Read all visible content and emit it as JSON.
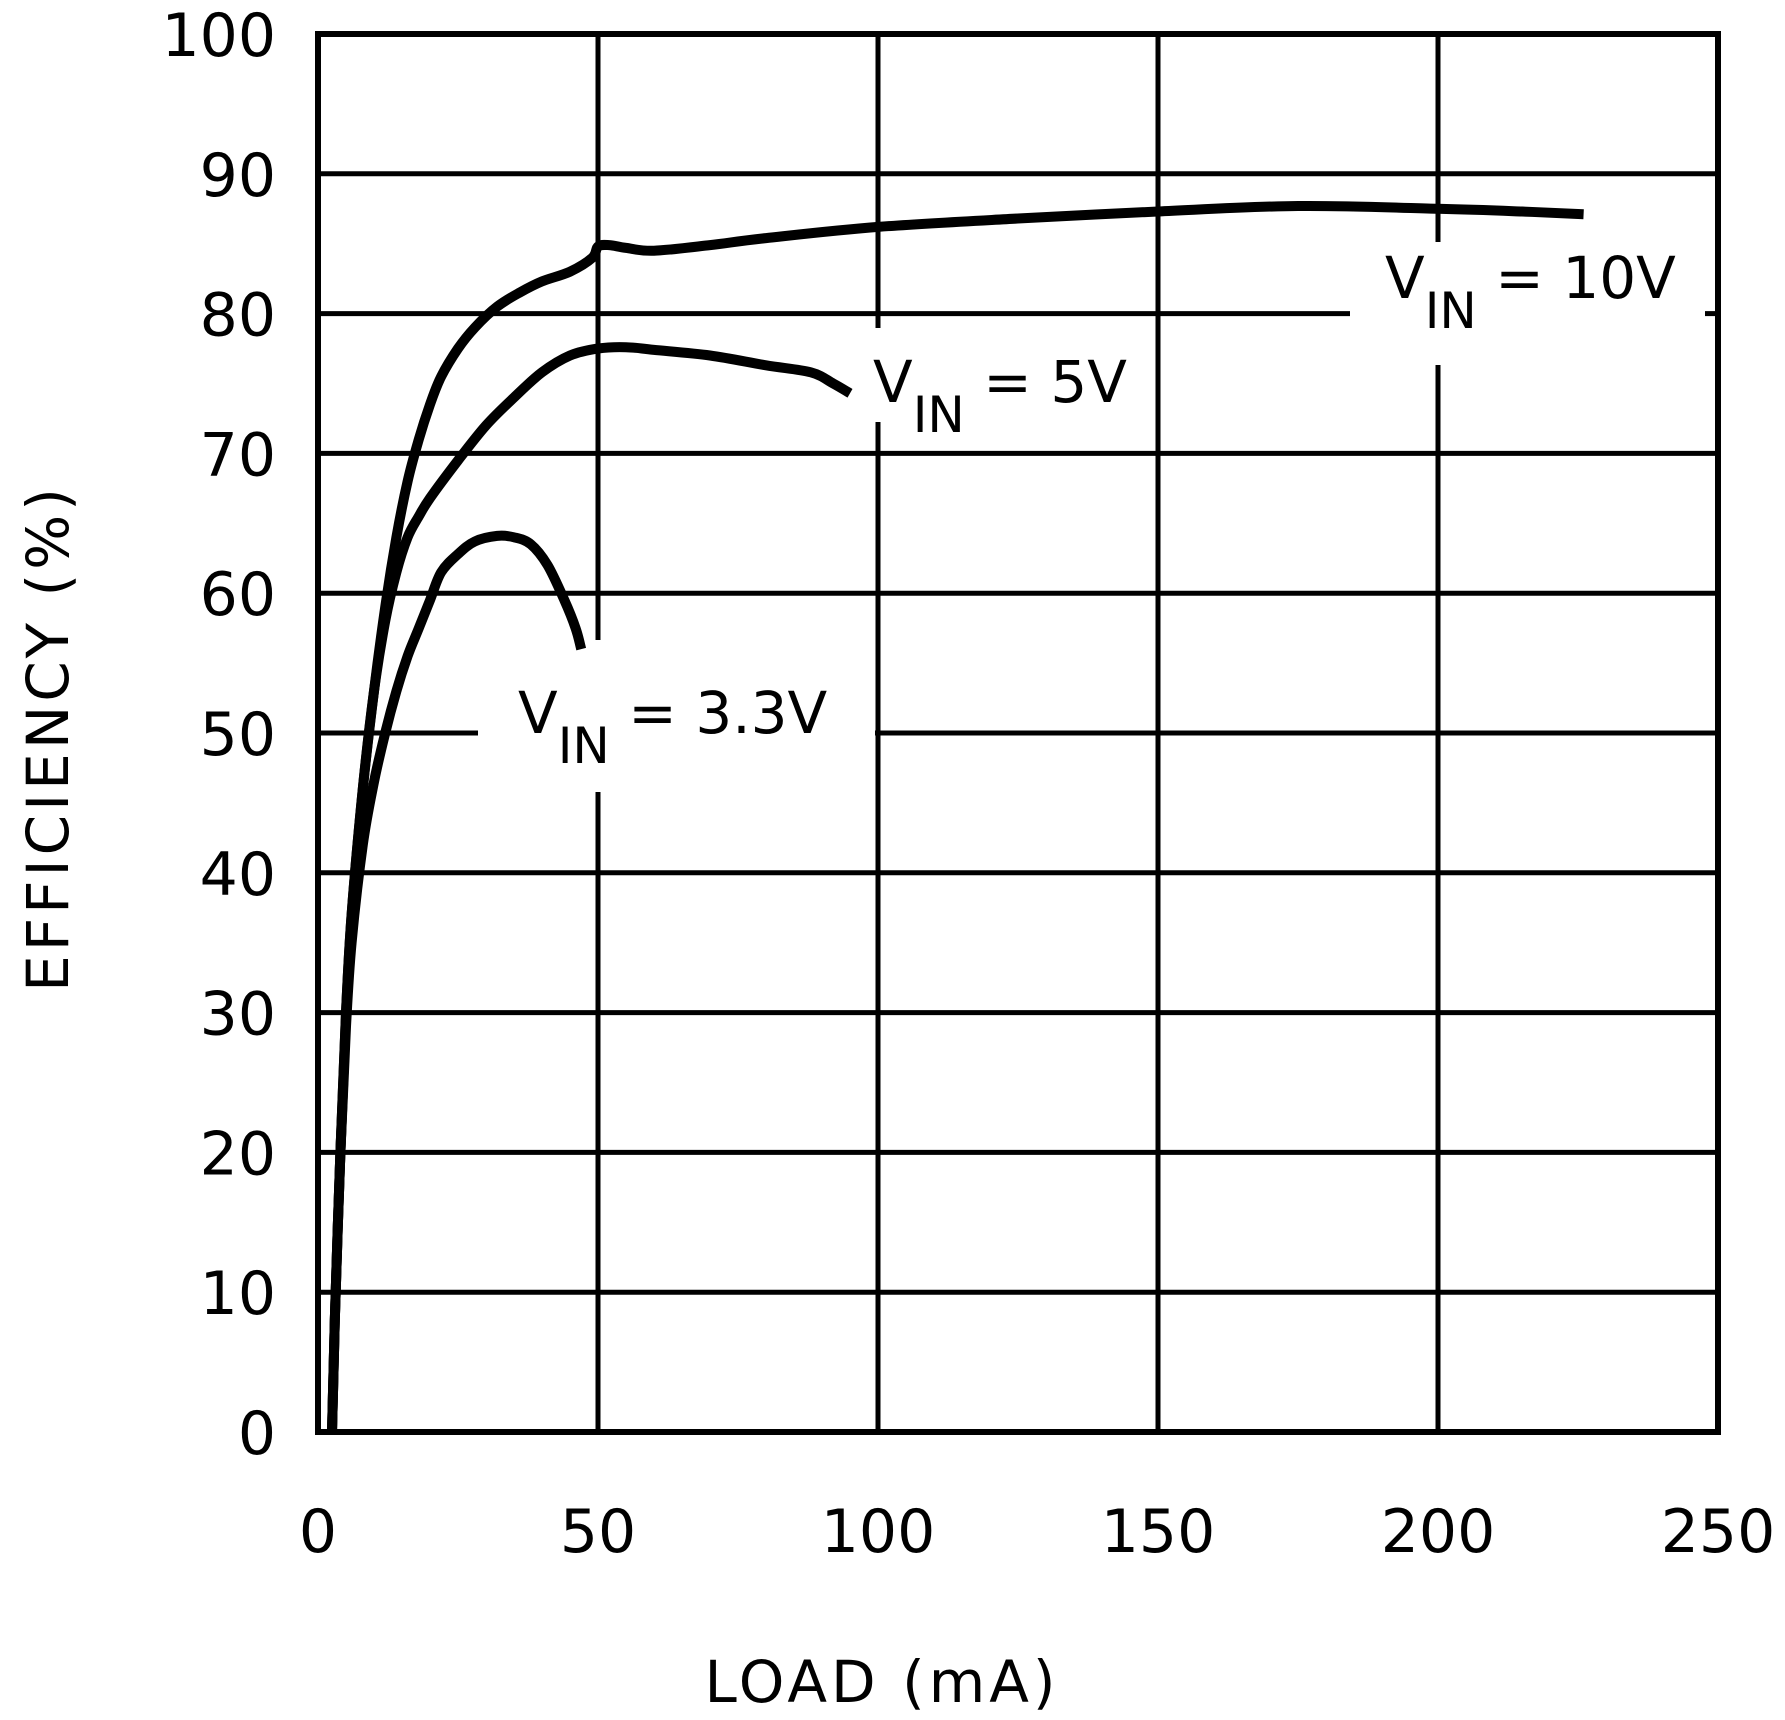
{
  "chart_data": {
    "type": "line",
    "title": "",
    "xlabel": "LOAD (mA)",
    "ylabel": "EFFICIENCY (%)",
    "xlim": [
      0,
      250
    ],
    "ylim": [
      0,
      100
    ],
    "xticks": [
      0,
      50,
      100,
      150,
      200,
      250
    ],
    "yticks": [
      0,
      10,
      20,
      30,
      40,
      50,
      60,
      70,
      80,
      90,
      100
    ],
    "grid": true,
    "colors": {
      "line": "#000000",
      "grid": "#000000",
      "background": "#ffffff"
    },
    "series": [
      {
        "name": "VIN = 10V",
        "label_main": "V",
        "label_sub": "IN",
        "label_rest": " = 10V",
        "x": [
          2.5,
          3,
          4,
          5,
          6,
          8,
          10,
          12,
          14,
          16,
          18,
          20,
          22,
          25,
          28,
          32,
          36,
          40,
          45,
          49,
          50,
          52,
          55,
          60,
          70,
          80,
          100,
          125,
          150,
          175,
          200,
          215,
          226
        ],
        "y": [
          0,
          8,
          20,
          30,
          37,
          46,
          53,
          59,
          64,
          68,
          71,
          73.5,
          75.5,
          77.5,
          79,
          80.5,
          81.5,
          82.3,
          83,
          84,
          84.8,
          84.9,
          84.7,
          84.5,
          84.9,
          85.4,
          86.2,
          86.8,
          87.3,
          87.7,
          87.5,
          87.3,
          87.1
        ]
      },
      {
        "name": "VIN = 5V",
        "label_main": "V",
        "label_sub": "IN",
        "label_rest": " = 5V",
        "x": [
          2.5,
          3,
          4,
          5,
          6,
          8,
          10,
          12,
          14,
          16,
          18,
          20,
          25,
          30,
          35,
          40,
          45,
          50,
          55,
          60,
          70,
          80,
          88,
          92,
          95
        ],
        "y": [
          0,
          8,
          20,
          30,
          37,
          46,
          53,
          58,
          61.5,
          64,
          65.5,
          66.8,
          69.5,
          72,
          74,
          75.8,
          77,
          77.5,
          77.6,
          77.4,
          77,
          76.3,
          75.8,
          75,
          74.3
        ]
      },
      {
        "name": "VIN = 3.3V",
        "label_main": "V",
        "label_sub": "IN",
        "label_rest": " = 3.3V",
        "x": [
          2.5,
          3,
          4,
          5,
          6,
          8,
          10,
          12,
          14,
          16,
          18,
          20,
          22,
          25,
          28,
          32,
          35,
          38,
          41,
          44,
          46,
          47
        ],
        "y": [
          0,
          8,
          20,
          29,
          35,
          42,
          46.5,
          50,
          53,
          55.5,
          57.5,
          59.5,
          61.5,
          62.8,
          63.7,
          64.1,
          64,
          63.5,
          62,
          59.5,
          57.5,
          56
        ]
      }
    ]
  }
}
